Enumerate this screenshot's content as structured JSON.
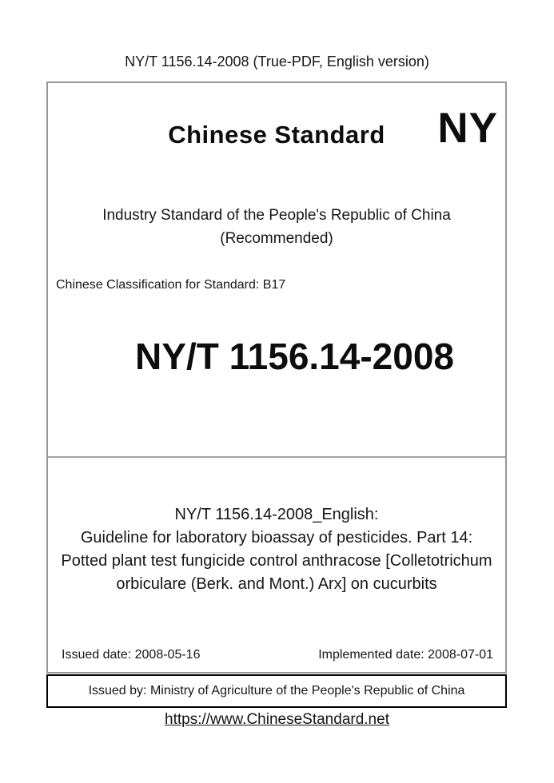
{
  "header": {
    "title": "NY/T 1156.14-2008 (True-PDF, English version)"
  },
  "cover": {
    "brand": "Chinese Standard",
    "logo_text": "NY",
    "org_line1": "Industry Standard of the People's Republic of China",
    "org_line2": "(Recommended)",
    "classification": "Chinese Classification for Standard: B17",
    "standard_number": "NY/T 1156.14-2008",
    "title_lines": [
      "NY/T 1156.14-2008_English:",
      "Guideline for laboratory bioassay of pesticides. Part 14:",
      "Potted plant test fungicide control anthracose [Colletotrichum",
      "orbiculare (Berk. and Mont.) Arx] on cucurbits"
    ],
    "issued_date": "Issued date: 2008-05-16",
    "implemented_date": "Implemented date: 2008-07-01",
    "issued_by": "Issued by: Ministry of Agriculture of the People's Republic of China"
  },
  "footer": {
    "link": "https://www.ChineseStandard.net"
  },
  "colors": {
    "box_border": "#979797",
    "divider": "#a3a3a3",
    "issuer_border": "#000000",
    "text": "#111111"
  }
}
